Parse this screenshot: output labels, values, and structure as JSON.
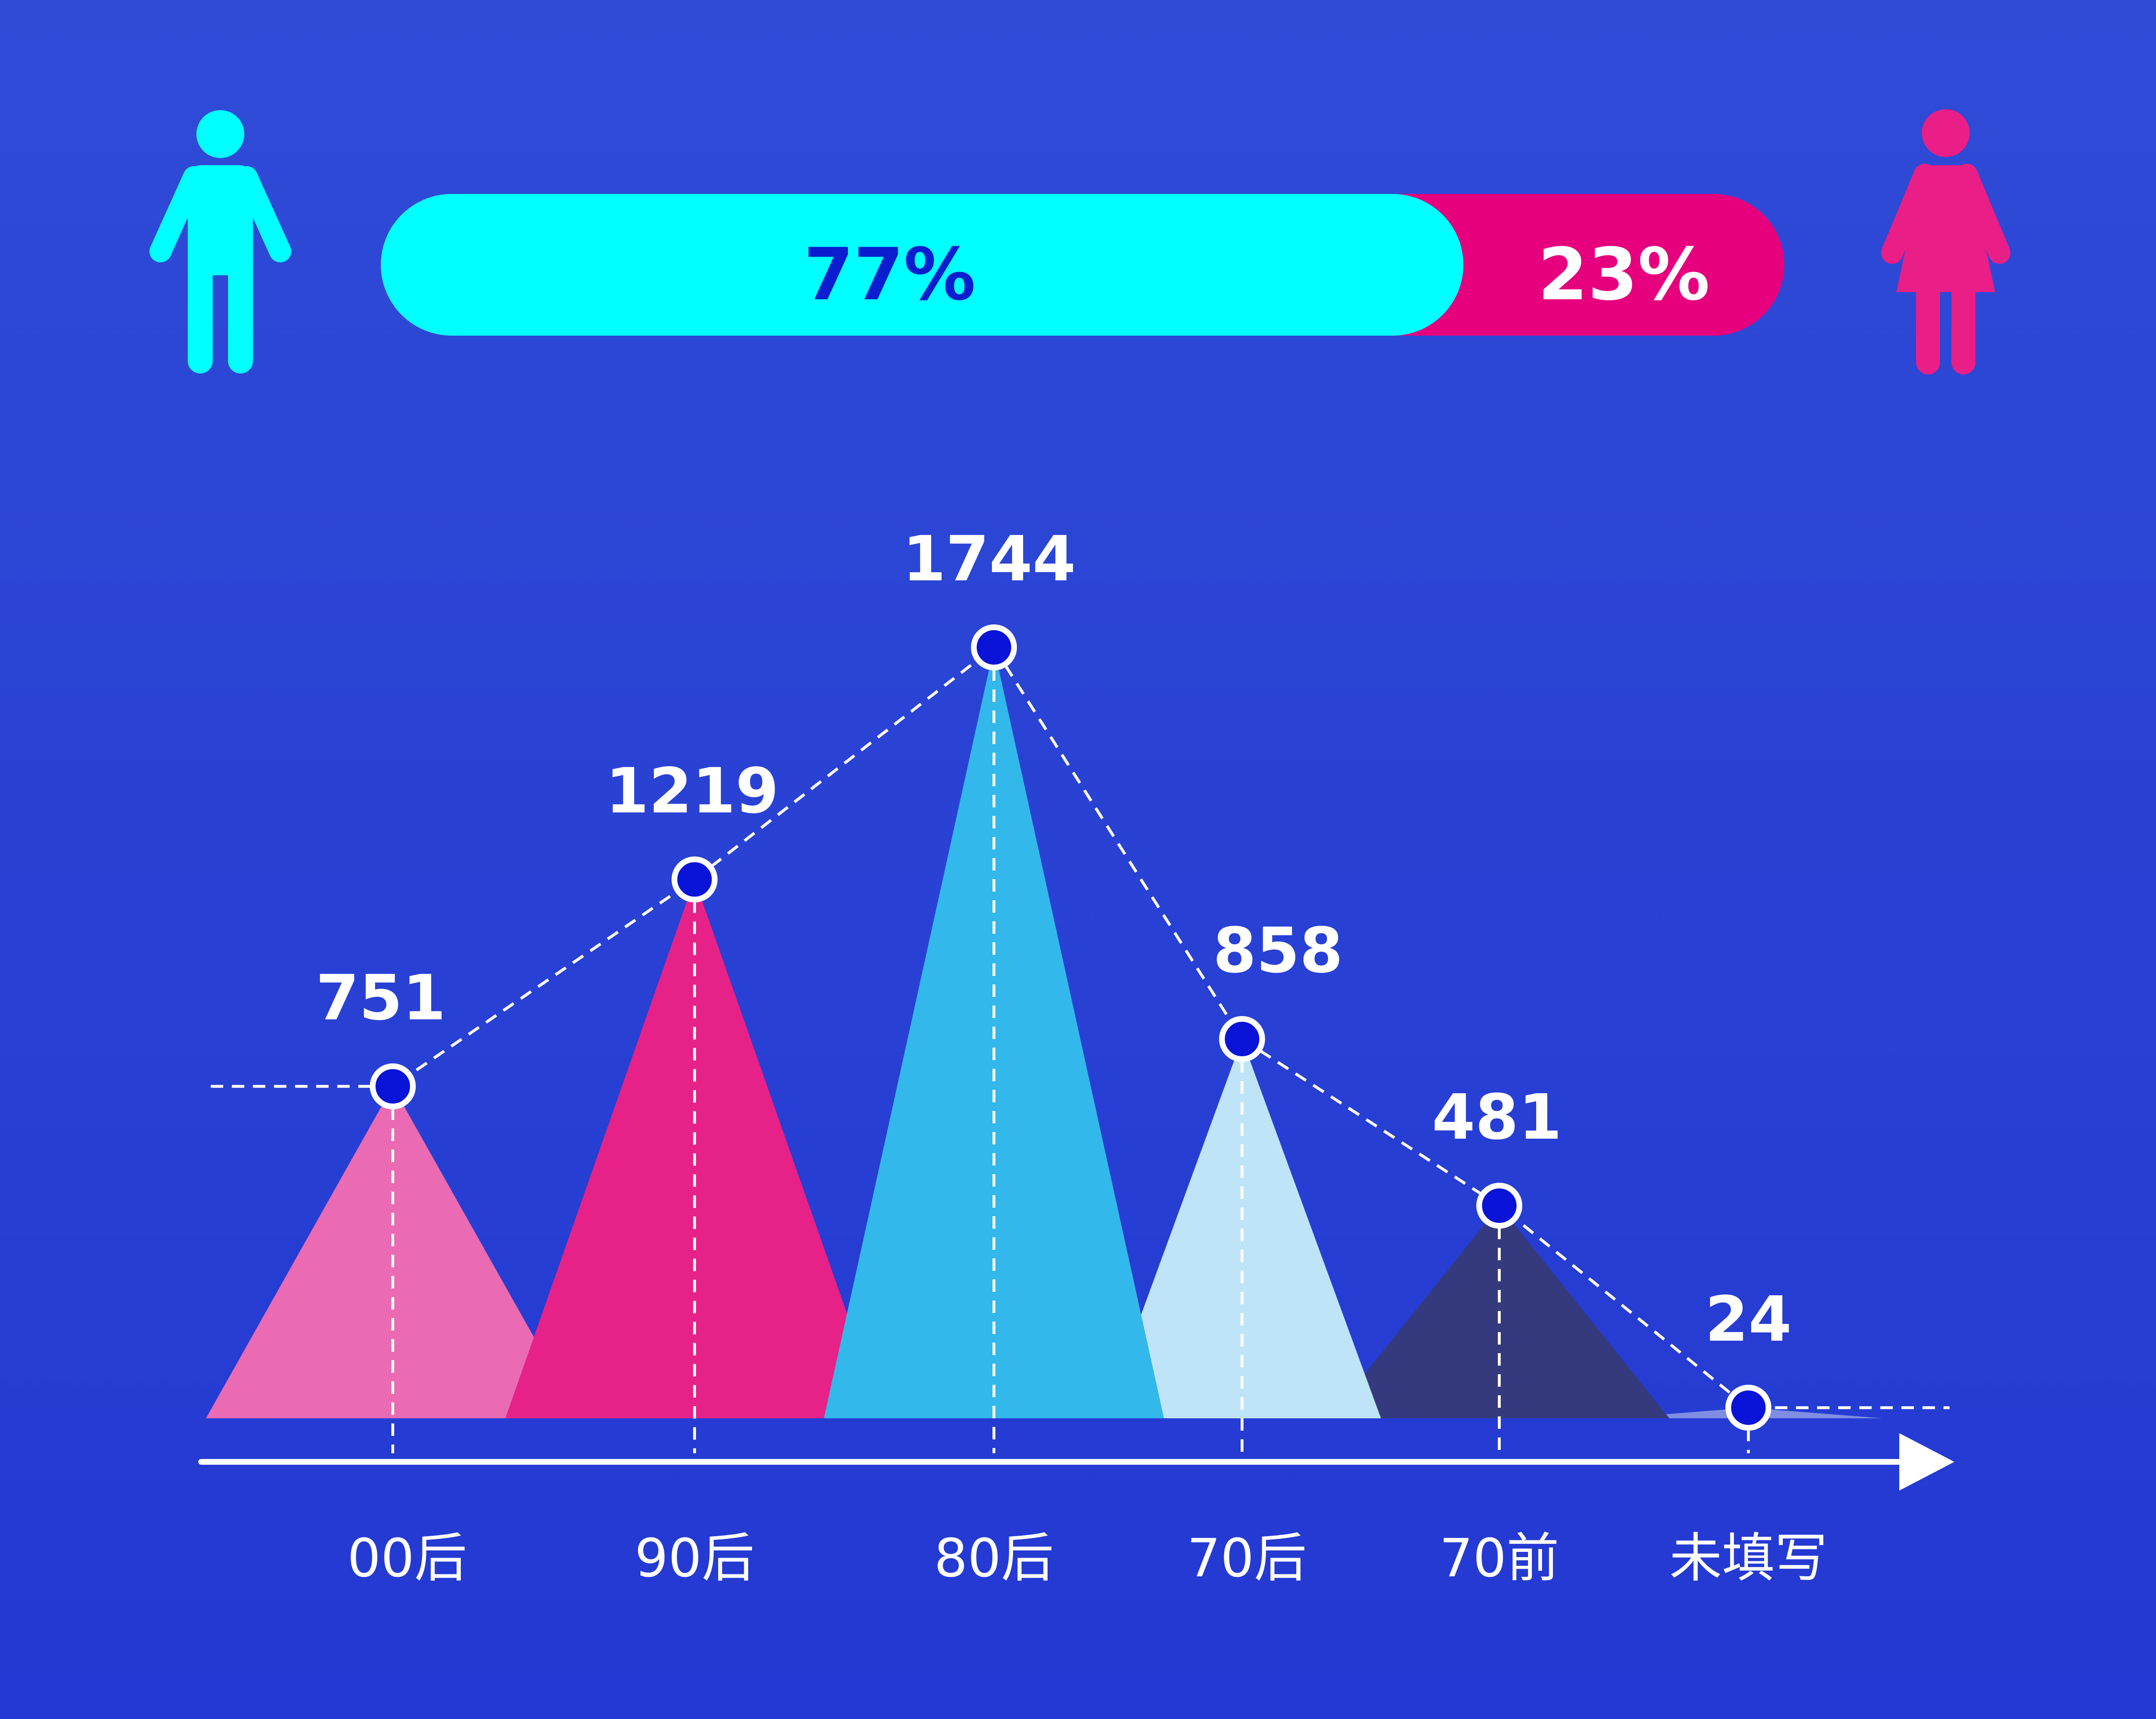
{
  "gender_bar": {
    "male": {
      "percent": 77,
      "label": "77%",
      "icon": "male-person-icon",
      "color": "#00ffff",
      "text_color": "#0a1ecf"
    },
    "female": {
      "percent": 23,
      "label": "23%",
      "icon": "female-person-icon",
      "color": "#e6007e",
      "text_color": "#ffffff"
    }
  },
  "chart_data": {
    "type": "area",
    "categories": [
      "00后",
      "90后",
      "80后",
      "70后",
      "70前",
      "未填写"
    ],
    "values": [
      751,
      1219,
      1744,
      858,
      481,
      24
    ],
    "value_labels": [
      "751",
      "1219",
      "1744",
      "858",
      "481",
      "24"
    ],
    "colors": [
      "#ea6bb3",
      "#e62188",
      "#33b8ec",
      "#bfe4f7",
      "#343a7d",
      "#7f8ee3"
    ],
    "marker_color": "#0a14d8",
    "line_style": "dashed",
    "ylim": [
      0,
      1744
    ]
  }
}
